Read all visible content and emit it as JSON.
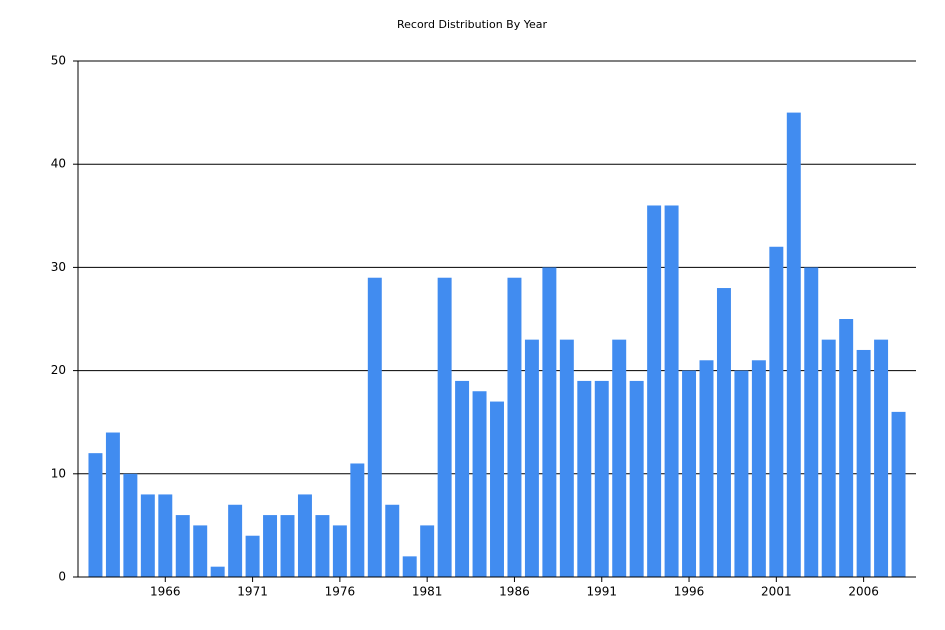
{
  "chart_data": {
    "type": "bar",
    "title": "Record Distribution By Year",
    "categories": [
      null,
      null,
      null,
      null,
      "1966",
      null,
      null,
      null,
      null,
      "1971",
      null,
      null,
      null,
      null,
      "1976",
      null,
      null,
      null,
      null,
      "1981",
      null,
      null,
      null,
      null,
      "1986",
      null,
      null,
      null,
      null,
      "1991",
      null,
      null,
      null,
      null,
      "1996",
      null,
      null,
      null,
      null,
      "2001",
      null,
      null,
      null,
      null,
      "2006",
      null,
      null
    ],
    "values": [
      12,
      14,
      10,
      8,
      8,
      6,
      5,
      1,
      7,
      4,
      6,
      6,
      8,
      6,
      5,
      11,
      29,
      7,
      2,
      5,
      29,
      19,
      18,
      17,
      29,
      23,
      30,
      23,
      19,
      19,
      23,
      19,
      36,
      36,
      20,
      21,
      28,
      20,
      21,
      32,
      45,
      30,
      23,
      25,
      22,
      23,
      16
    ],
    "color": "#418cf0",
    "ylim": [
      0,
      50
    ],
    "yticks": [
      0,
      10,
      20,
      30,
      40,
      50
    ],
    "grid": true
  }
}
